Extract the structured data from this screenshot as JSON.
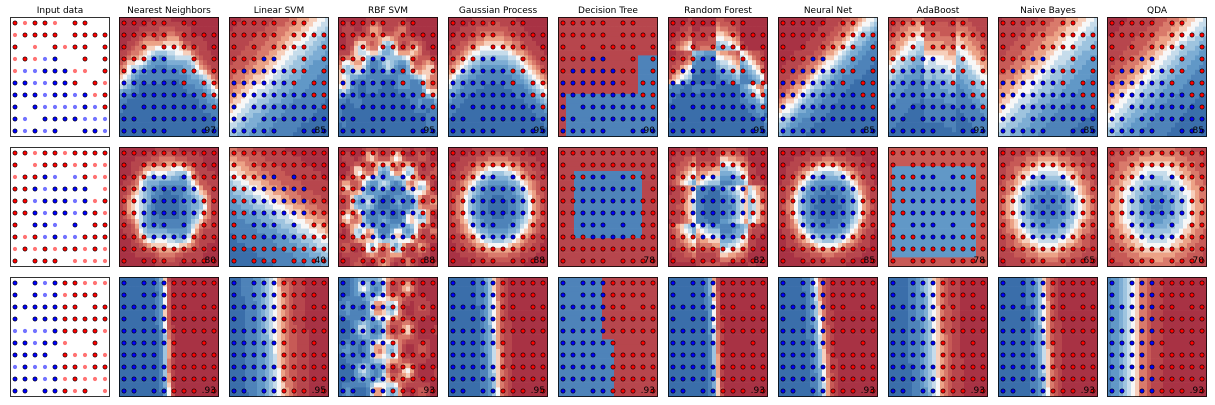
{
  "chart_data": {
    "type": "classifier-comparison-grid",
    "columns": [
      "Input data",
      "Nearest Neighbors",
      "Linear SVM",
      "RBF SVM",
      "Gaussian Process",
      "Decision Tree",
      "Random Forest",
      "Neural Net",
      "AdaBoost",
      "Naive Bayes",
      "QDA"
    ],
    "colors": {
      "class0": "#ff0000",
      "class1": "#0000ff",
      "point_edge": "#000000",
      "surface_low": "#a83244",
      "surface_mid": "#f7f7f7",
      "surface_high": "#3a6eaa"
    },
    "grid": false,
    "axis_ticks": false,
    "rows": [
      {
        "dataset": "moons",
        "scores": [
          ".97",
          ".85",
          ".95",
          ".95",
          ".90",
          ".95",
          ".85",
          ".93",
          ".85",
          ".85"
        ]
      },
      {
        "dataset": "circles",
        "scores": [
          ".80",
          ".40",
          ".88",
          ".88",
          ".78",
          ".82",
          ".85",
          ".78",
          ".65",
          ".70"
        ]
      },
      {
        "dataset": "linear",
        "scores": [
          ".93",
          ".95",
          ".93",
          ".95",
          ".93",
          ".93",
          ".93",
          ".93",
          ".93",
          ".93"
        ]
      }
    ]
  }
}
